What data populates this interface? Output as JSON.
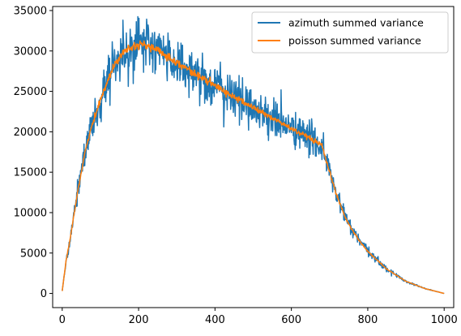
{
  "chart_data": {
    "type": "line",
    "title": "",
    "xlabel": "",
    "ylabel": "",
    "xlim": [
      -25,
      1025
    ],
    "ylim": [
      -1750,
      35500
    ],
    "xticks": [
      0,
      200,
      400,
      600,
      800,
      1000
    ],
    "xtick_labels": [
      "0",
      "200",
      "400",
      "600",
      "800",
      "1000"
    ],
    "yticks": [
      0,
      5000,
      10000,
      15000,
      20000,
      25000,
      30000,
      35000
    ],
    "ytick_labels": [
      "0",
      "5000",
      "10000",
      "15000",
      "20000",
      "25000",
      "30000",
      "35000"
    ],
    "grid": false,
    "legend_position": "top-right",
    "series": [
      {
        "name": "azimuth summed variance",
        "color": "#1f77b4",
        "noisy": true,
        "x": [
          0,
          10,
          20,
          30,
          40,
          50,
          60,
          70,
          80,
          90,
          100,
          120,
          140,
          160,
          180,
          200,
          220,
          240,
          260,
          280,
          300,
          350,
          400,
          450,
          500,
          550,
          600,
          650,
          680,
          690,
          700,
          720,
          740,
          760,
          780,
          800,
          850,
          900,
          950,
          1000
        ],
        "y": [
          300,
          4000,
          6500,
          9500,
          12500,
          15000,
          17500,
          19500,
          21000,
          22500,
          24000,
          26500,
          28500,
          30000,
          30500,
          30800,
          30700,
          30300,
          29800,
          29200,
          28600,
          27100,
          25700,
          24300,
          23000,
          21700,
          20400,
          19100,
          18300,
          16500,
          15000,
          12000,
          9500,
          7800,
          6400,
          5200,
          3000,
          1500,
          600,
          0
        ]
      },
      {
        "name": "poisson summed variance",
        "color": "#ff7f0e",
        "noisy": false,
        "x": [
          0,
          10,
          20,
          30,
          40,
          50,
          60,
          70,
          80,
          90,
          100,
          120,
          140,
          160,
          180,
          200,
          220,
          240,
          260,
          280,
          300,
          350,
          400,
          450,
          500,
          550,
          600,
          650,
          680,
          690,
          700,
          720,
          740,
          760,
          780,
          800,
          850,
          900,
          950,
          1000
        ],
        "y": [
          300,
          4000,
          6500,
          9500,
          12500,
          15000,
          17500,
          19500,
          21000,
          22500,
          24000,
          26500,
          28500,
          30000,
          30500,
          30800,
          30700,
          30300,
          29800,
          29200,
          28600,
          27100,
          25700,
          24300,
          23000,
          21700,
          20400,
          19100,
          18300,
          16500,
          15000,
          12000,
          9500,
          7800,
          6400,
          5200,
          3000,
          1500,
          600,
          0
        ]
      }
    ]
  }
}
